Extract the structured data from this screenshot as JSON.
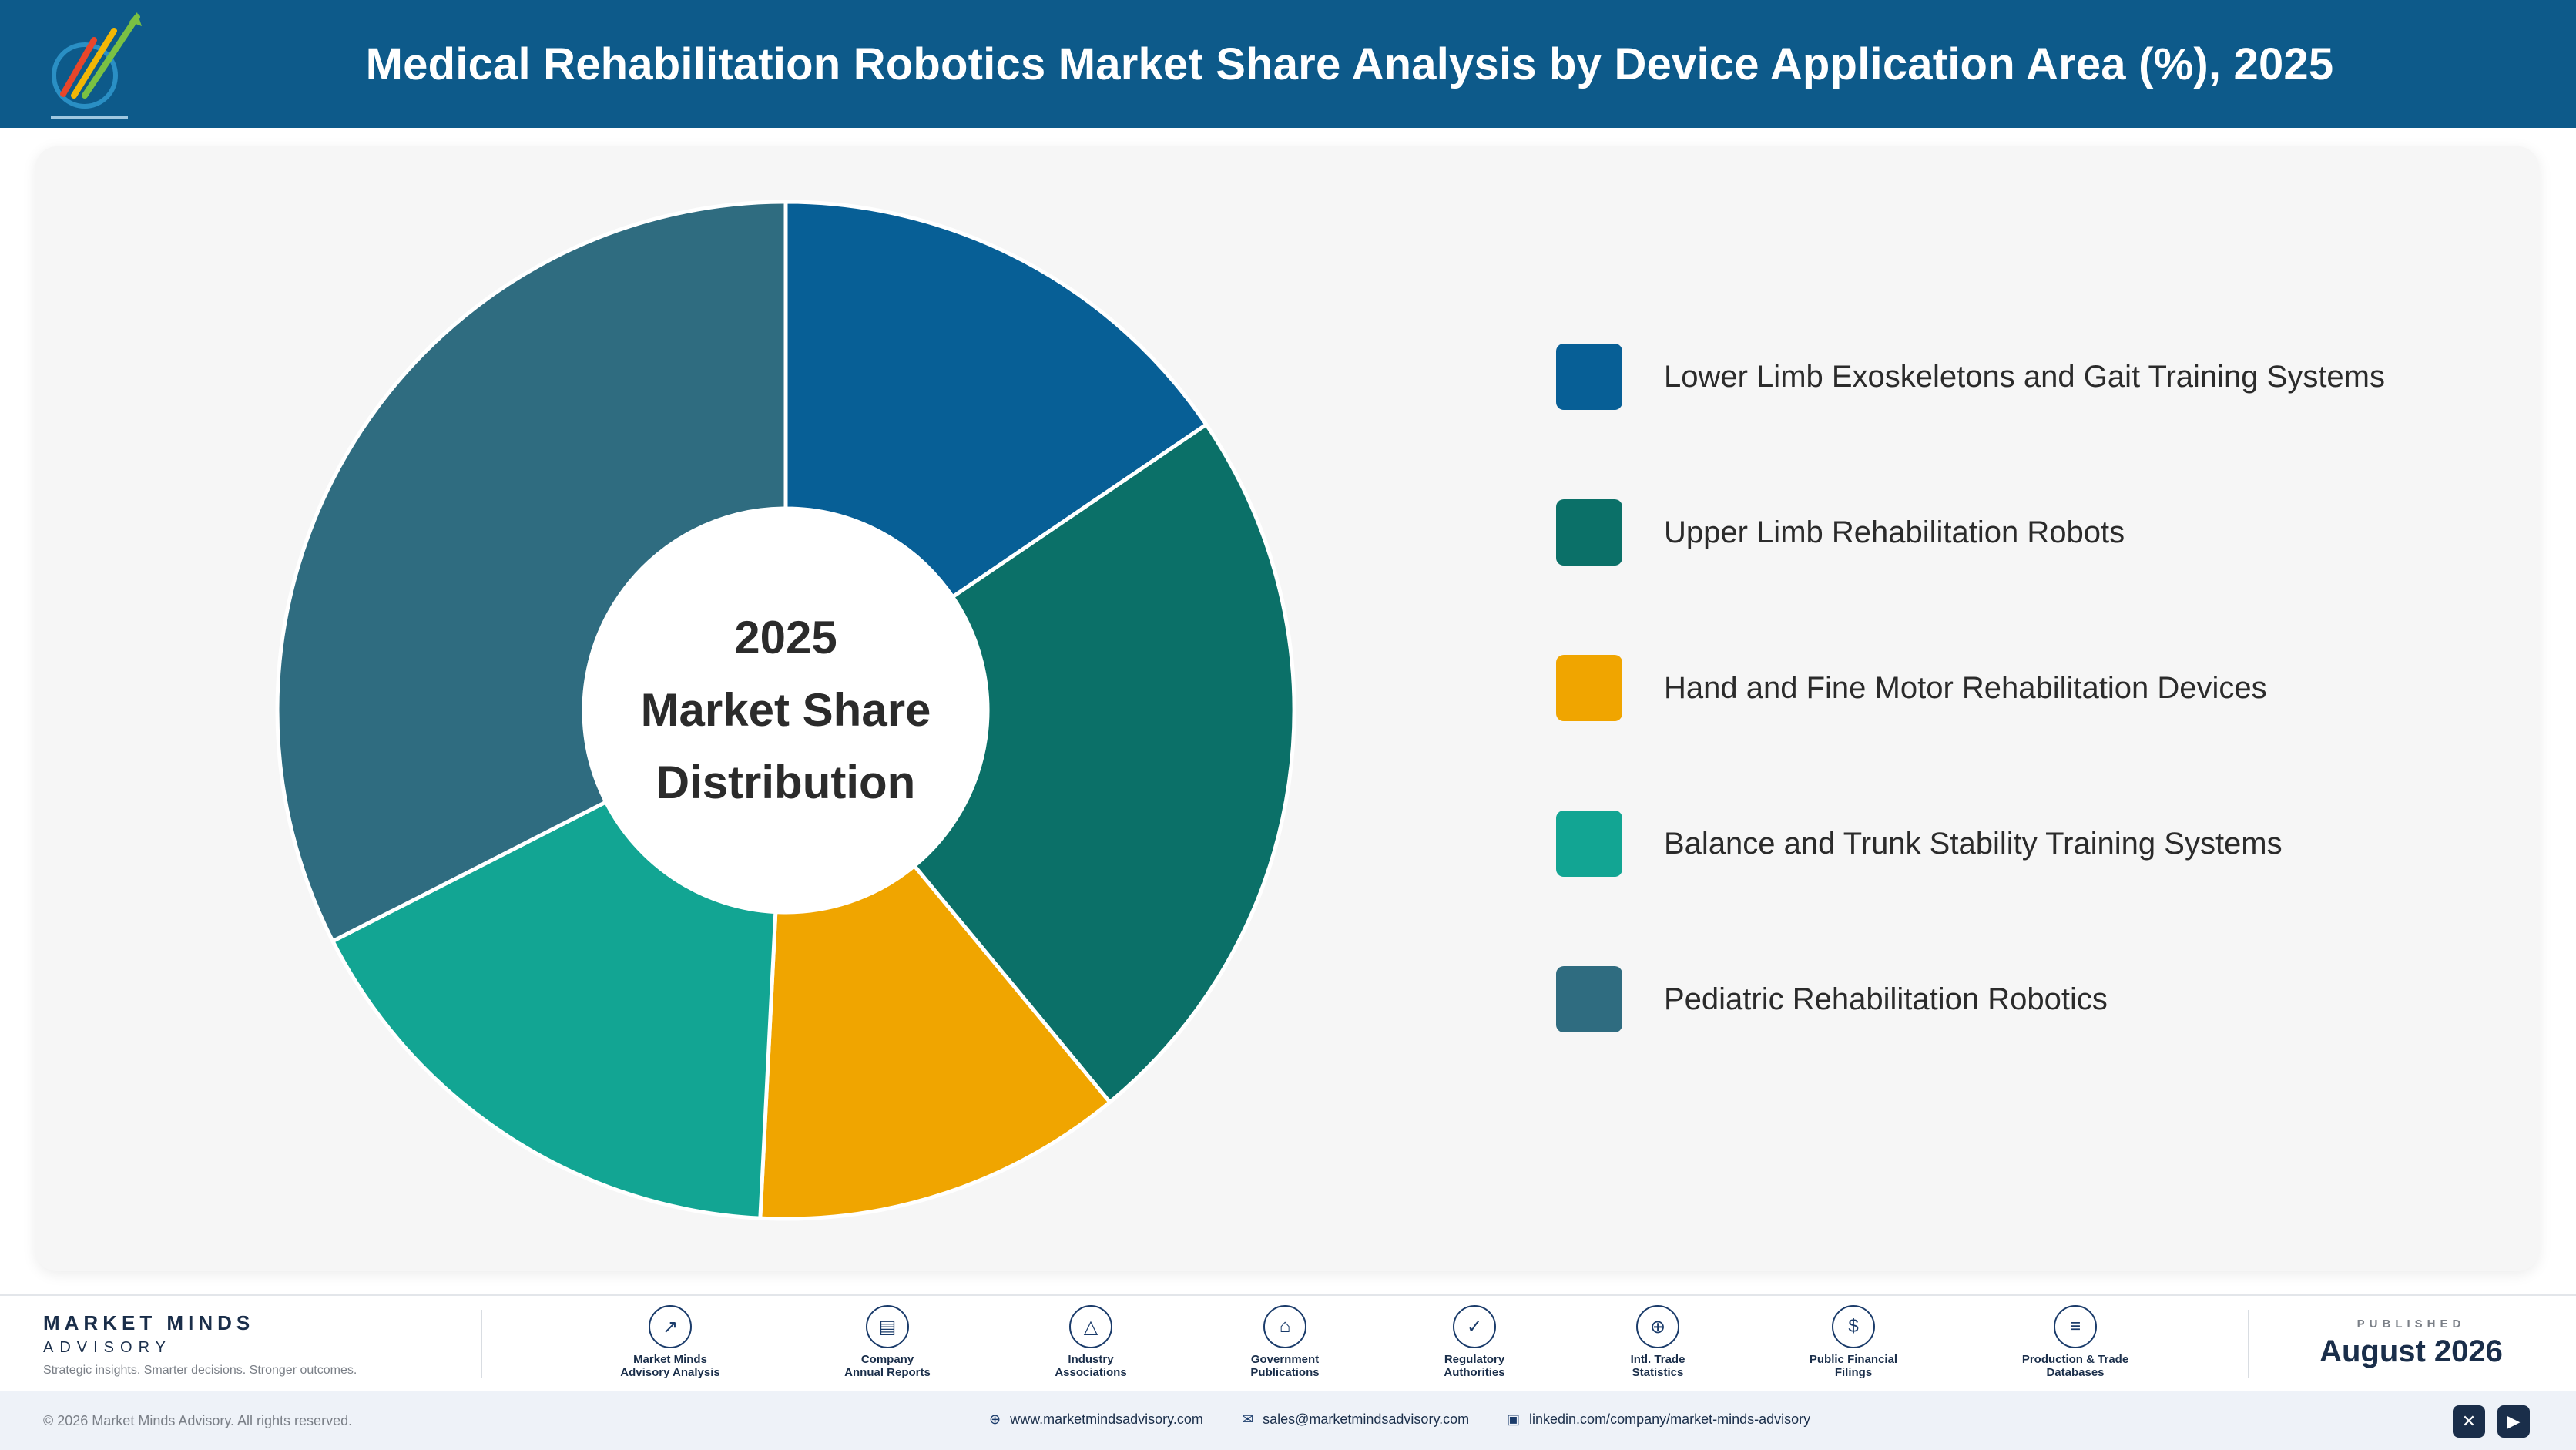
{
  "header": {
    "title": "Medical Rehabilitation Robotics Market Share Analysis by Device Application Area (%), 2025",
    "background": "#0d5a8a"
  },
  "chart_data": {
    "type": "pie",
    "variant": "donut",
    "title": "Medical Rehabilitation Robotics Market Share Analysis by Device Application Area (%), 2025",
    "center_label": [
      "2025",
      "Market Share",
      "Distribution"
    ],
    "categories": [
      "Lower Limb Exoskeletons and Gait Training Systems",
      "Upper Limb Rehabilitation Robots",
      "Hand and Fine Motor Rehabilitation Devices",
      "Balance and Trunk Stability Training Systems",
      "Pediatric Rehabilitation Robotics"
    ],
    "values": [
      15.5,
      23.5,
      11.8,
      16.7,
      32.5
    ],
    "colors": [
      "#075f96",
      "#0b7068",
      "#f0a500",
      "#12a593",
      "#2f6c80"
    ],
    "legend_position": "right"
  },
  "footer": {
    "brand_name": "MARKET MINDS",
    "brand_sub": "ADVISORY",
    "brand_tagline": "Strategic insights. Smarter decisions. Stronger outcomes.",
    "sources": [
      {
        "icon": "trend-chart-icon",
        "glyph": "↗",
        "line1": "Market Minds",
        "line2": "Advisory Analysis"
      },
      {
        "icon": "document-icon",
        "glyph": "▤",
        "line1": "Company",
        "line2": "Annual Reports"
      },
      {
        "icon": "network-icon",
        "glyph": "△",
        "line1": "Industry",
        "line2": "Associations"
      },
      {
        "icon": "government-building-icon",
        "glyph": "⌂",
        "line1": "Government",
        "line2": "Publications"
      },
      {
        "icon": "shield-check-icon",
        "glyph": "✓",
        "line1": "Regulatory",
        "line2": "Authorities"
      },
      {
        "icon": "globe-icon",
        "glyph": "⊕",
        "line1": "Intl. Trade",
        "line2": "Statistics"
      },
      {
        "icon": "dollar-coin-icon",
        "glyph": "$",
        "line1": "Public Financial",
        "line2": "Filings"
      },
      {
        "icon": "database-icon",
        "glyph": "≡",
        "line1": "Production & Trade",
        "line2": "Databases"
      }
    ],
    "published_label": "PUBLISHED",
    "published_date": "August 2026",
    "copyright": "© 2026 Market Minds Advisory. All rights reserved.",
    "website": "www.marketmindsadvisory.com",
    "email": "sales@marketmindsadvisory.com",
    "linkedin": "linkedin.com/company/market-minds-advisory",
    "social": [
      {
        "icon": "x-icon",
        "glyph": "✕"
      },
      {
        "icon": "youtube-icon",
        "glyph": "▶"
      }
    ]
  }
}
